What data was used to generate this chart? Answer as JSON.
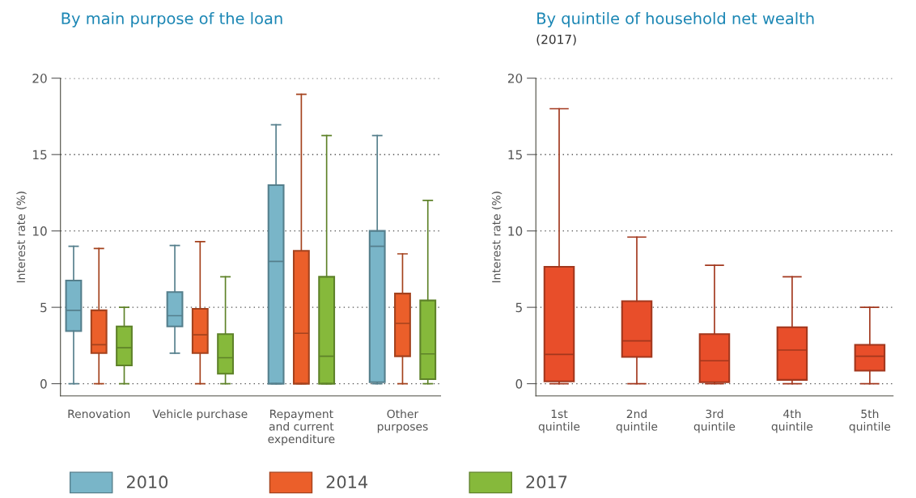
{
  "chart_data": [
    {
      "type": "box",
      "title": "By main purpose of the loan",
      "ylabel": "Interest rate (%)",
      "categories": [
        "Renovation",
        "Vehicle purchase",
        "Repayment\nand current\nexpenditure",
        "Other\npurposes"
      ],
      "ylim": [
        -0.8,
        20
      ],
      "yticks": [
        0,
        5,
        10,
        15,
        20
      ],
      "grid": "y",
      "legend": "bottom",
      "series": [
        {
          "name": "2010",
          "color": "#79b5c8",
          "boxes": [
            {
              "low": 0,
              "q1": 3.45,
              "median": 4.8,
              "q3": 6.75,
              "high": 9.0
            },
            {
              "low": 2.0,
              "q1": 3.75,
              "median": 4.45,
              "q3": 6.0,
              "high": 9.05
            },
            {
              "low": 0,
              "q1": 0,
              "median": 8.0,
              "q3": 13.0,
              "high": 16.95
            },
            {
              "low": 0,
              "q1": 0.1,
              "median": 9.0,
              "q3": 10.0,
              "high": 16.25
            }
          ]
        },
        {
          "name": "2014",
          "color": "#eb5f2a",
          "boxes": [
            {
              "low": 0,
              "q1": 2.0,
              "median": 2.55,
              "q3": 4.8,
              "high": 8.85
            },
            {
              "low": 0,
              "q1": 2.0,
              "median": 3.2,
              "q3": 4.9,
              "high": 9.3
            },
            {
              "low": 0,
              "q1": 0,
              "median": 3.3,
              "q3": 8.7,
              "high": 18.95
            },
            {
              "low": 0,
              "q1": 1.8,
              "median": 3.95,
              "q3": 5.9,
              "high": 8.5
            }
          ]
        },
        {
          "name": "2017",
          "color": "#86b93b",
          "boxes": [
            {
              "low": 0,
              "q1": 1.2,
              "median": 2.35,
              "q3": 3.75,
              "high": 5.0
            },
            {
              "low": 0,
              "q1": 0.65,
              "median": 1.7,
              "q3": 3.25,
              "high": 7.0
            },
            {
              "low": 0,
              "q1": 0,
              "median": 1.8,
              "q3": 7.0,
              "high": 16.25
            },
            {
              "low": 0,
              "q1": 0.3,
              "median": 1.95,
              "q3": 5.45,
              "high": 12.0
            }
          ]
        }
      ]
    },
    {
      "type": "box",
      "title": "By quintile of household net wealth",
      "subtitle": "(2017)",
      "ylabel": "Interest rate (%)",
      "categories": [
        "1st\nquintile",
        "2nd\nquintile",
        "3rd\nquintile",
        "4th\nquintile",
        "5th\nquintile"
      ],
      "ylim": [
        -0.8,
        20
      ],
      "yticks": [
        0,
        5,
        10,
        15,
        20
      ],
      "grid": "y",
      "series": [
        {
          "color": "#e84e2a",
          "boxes": [
            {
              "low": 0,
              "q1": 0.15,
              "median": 1.92,
              "q3": 7.65,
              "high": 18.0
            },
            {
              "low": 0,
              "q1": 1.75,
              "median": 2.8,
              "q3": 5.4,
              "high": 9.6
            },
            {
              "low": 0,
              "q1": 0.1,
              "median": 1.5,
              "q3": 3.25,
              "high": 7.75
            },
            {
              "low": 0,
              "q1": 0.25,
              "median": 2.2,
              "q3": 3.7,
              "high": 7.0
            },
            {
              "low": 0,
              "q1": 0.85,
              "median": 1.8,
              "q3": 2.55,
              "high": 5.0
            }
          ]
        }
      ]
    }
  ]
}
